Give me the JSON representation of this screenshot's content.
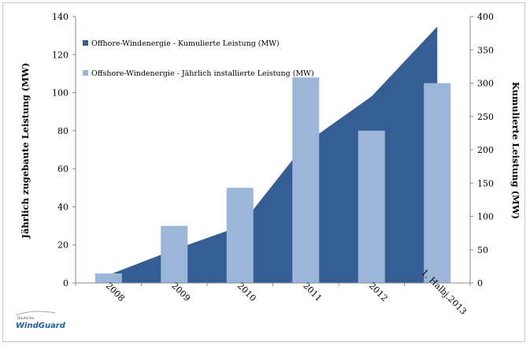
{
  "chart_data": {
    "type": "bar+area",
    "categories": [
      "2008",
      "2009",
      "2010",
      "2011",
      "2012",
      "1. Halbj.2013"
    ],
    "series": [
      {
        "name": "Offhore-Windenergie - Kumulierte Leistung (MW)",
        "type": "area",
        "axis": "right",
        "color": "#355f94",
        "values": [
          12,
          50,
          85,
          210,
          280,
          385
        ]
      },
      {
        "name": "Offshore-Windenergie - Jährlich installierte Leistung (MW)",
        "type": "bar",
        "axis": "left",
        "color": "#9bb6d9",
        "values": [
          5,
          30,
          50,
          108,
          80,
          105
        ]
      }
    ],
    "y_left": {
      "label": "Jährlich zugebaute Leistung (MW)",
      "ticks": [
        "0",
        "20",
        "40",
        "60",
        "80",
        "100",
        "120",
        "140"
      ],
      "min": 0,
      "max": 140
    },
    "y_right": {
      "label": "Kumulierte Leistung (MW)",
      "ticks": [
        "0",
        "50",
        "100",
        "150",
        "200",
        "250",
        "300",
        "350",
        "400"
      ],
      "min": 0,
      "max": 400
    },
    "legend_position": "top-left"
  },
  "logo": {
    "small_text": "Deutsche",
    "main_text": "WindGuard"
  }
}
